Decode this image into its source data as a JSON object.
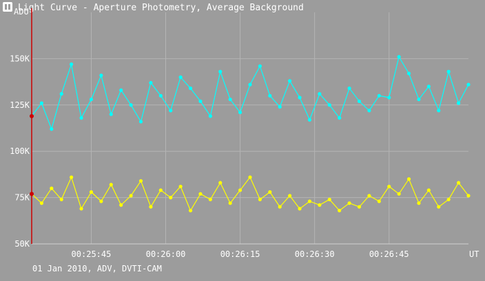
{
  "window": {
    "title": "Light Curve - Aperture Photometry, Average Background",
    "icon": "light-curve-app-icon"
  },
  "footer": {
    "info": "01 Jan 2010, ADV, DVTI-CAM"
  },
  "chart_data": {
    "type": "line",
    "title": "",
    "ylabel": "ADU",
    "xlabel": "UT",
    "ylim": [
      50000,
      175000
    ],
    "xlim": [
      "00:25:33",
      "00:27:01"
    ],
    "yticks": [
      {
        "value": 50000,
        "label": "50K"
      },
      {
        "value": 75000,
        "label": "75K"
      },
      {
        "value": 100000,
        "label": "100K"
      },
      {
        "value": 125000,
        "label": "125K"
      },
      {
        "value": 150000,
        "label": "150K"
      }
    ],
    "xticks": [
      {
        "value": "00:25:45",
        "label": "00:25:45"
      },
      {
        "value": "00:26:00",
        "label": "00:26:00"
      },
      {
        "value": "00:26:15",
        "label": "00:26:15"
      },
      {
        "value": "00:26:30",
        "label": "00:26:30"
      },
      {
        "value": "00:26:45",
        "label": "00:26:45"
      }
    ],
    "grid": true,
    "cursor": {
      "time": "00:25:33",
      "values": [
        119000,
        77000
      ]
    },
    "series": [
      {
        "color": "#00ffff",
        "x": [
          "00:25:33",
          "00:25:35",
          "00:25:37",
          "00:25:39",
          "00:25:41",
          "00:25:43",
          "00:25:45",
          "00:25:47",
          "00:25:49",
          "00:25:51",
          "00:25:53",
          "00:25:55",
          "00:25:57",
          "00:25:59",
          "00:26:01",
          "00:26:03",
          "00:26:05",
          "00:26:07",
          "00:26:09",
          "00:26:11",
          "00:26:13",
          "00:26:15",
          "00:26:17",
          "00:26:19",
          "00:26:21",
          "00:26:23",
          "00:26:25",
          "00:26:27",
          "00:26:29",
          "00:26:31",
          "00:26:33",
          "00:26:35",
          "00:26:37",
          "00:26:39",
          "00:26:41",
          "00:26:43",
          "00:26:45",
          "00:26:47",
          "00:26:49",
          "00:26:51",
          "00:26:53",
          "00:26:55",
          "00:26:57",
          "00:26:59",
          "00:27:01"
        ],
        "y": [
          119000,
          126000,
          112000,
          131000,
          147000,
          118000,
          128000,
          141000,
          120000,
          133000,
          125000,
          116000,
          137000,
          130000,
          122000,
          140000,
          134000,
          127000,
          119000,
          143000,
          128000,
          121000,
          136000,
          146000,
          130000,
          124000,
          138000,
          129000,
          117000,
          131000,
          125000,
          118000,
          134000,
          127000,
          122000,
          130000,
          129000,
          151000,
          142000,
          128000,
          135000,
          122000,
          143000,
          126000,
          136000
        ]
      },
      {
        "color": "#ffff00",
        "x": [
          "00:25:33",
          "00:25:35",
          "00:25:37",
          "00:25:39",
          "00:25:41",
          "00:25:43",
          "00:25:45",
          "00:25:47",
          "00:25:49",
          "00:25:51",
          "00:25:53",
          "00:25:55",
          "00:25:57",
          "00:25:59",
          "00:26:01",
          "00:26:03",
          "00:26:05",
          "00:26:07",
          "00:26:09",
          "00:26:11",
          "00:26:13",
          "00:26:15",
          "00:26:17",
          "00:26:19",
          "00:26:21",
          "00:26:23",
          "00:26:25",
          "00:26:27",
          "00:26:29",
          "00:26:31",
          "00:26:33",
          "00:26:35",
          "00:26:37",
          "00:26:39",
          "00:26:41",
          "00:26:43",
          "00:26:45",
          "00:26:47",
          "00:26:49",
          "00:26:51",
          "00:26:53",
          "00:26:55",
          "00:26:57",
          "00:26:59",
          "00:27:01"
        ],
        "y": [
          77000,
          72000,
          80000,
          74000,
          86000,
          69000,
          78000,
          73000,
          82000,
          71000,
          76000,
          84000,
          70000,
          79000,
          75000,
          81000,
          68000,
          77000,
          74000,
          83000,
          72000,
          79000,
          86000,
          74000,
          78000,
          70000,
          76000,
          69000,
          73000,
          71000,
          74000,
          68000,
          72000,
          70000,
          76000,
          73000,
          81000,
          77000,
          85000,
          72000,
          79000,
          70000,
          74000,
          83000,
          76000
        ]
      }
    ]
  }
}
